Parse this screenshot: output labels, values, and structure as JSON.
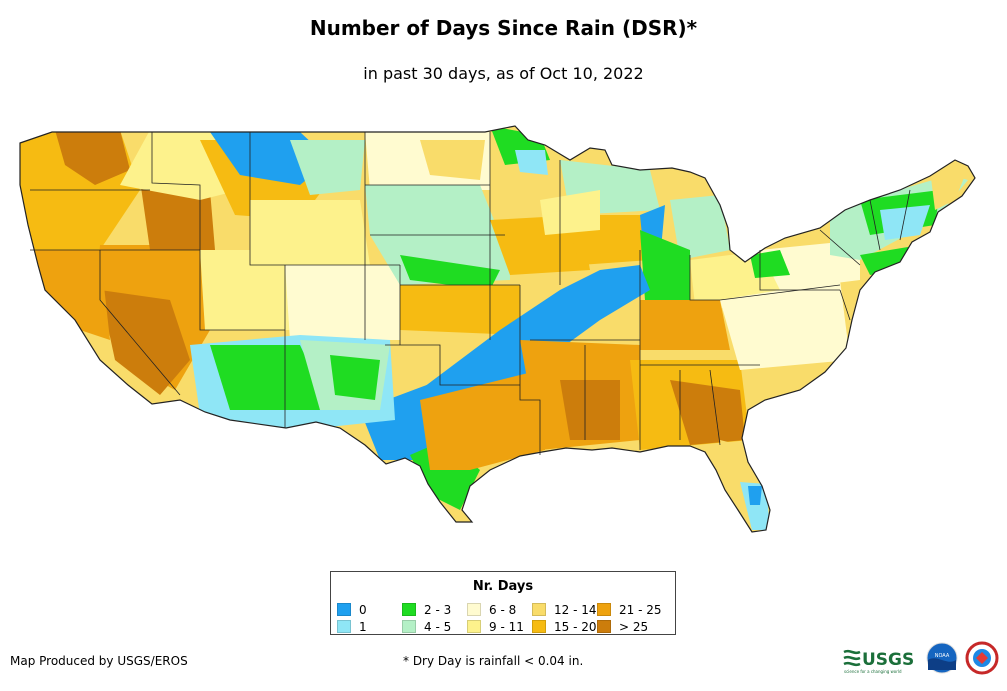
{
  "title": "Number of Days Since Rain (DSR)*",
  "subtitle": "in past 30 days, as of Oct 10, 2022",
  "legend": {
    "title": "Nr. Days",
    "items": [
      {
        "label": "0",
        "color": "#1fa0ef"
      },
      {
        "label": "1",
        "color": "#8fe6f6"
      },
      {
        "label": "2 - 3",
        "color": "#1fdc22"
      },
      {
        "label": "4 - 5",
        "color": "#b4f0c6"
      },
      {
        "label": "6 - 8",
        "color": "#fffbd0"
      },
      {
        "label": "9 - 11",
        "color": "#fdf28c"
      },
      {
        "label": "12 - 14",
        "color": "#f9dc6a"
      },
      {
        "label": "15 - 20",
        "color": "#f6bb12"
      },
      {
        "label": "21 - 25",
        "color": "#eea20f"
      },
      {
        "label": "> 25",
        "color": "#cc7d0c"
      }
    ]
  },
  "footer": {
    "credit": "Map Produced by USGS/EROS",
    "note": "* Dry Day is rainfall < 0.04 in."
  },
  "logos": {
    "usgs": "USGS",
    "usgs_tagline": "science for a changing world",
    "noaa": "NOAA"
  }
}
